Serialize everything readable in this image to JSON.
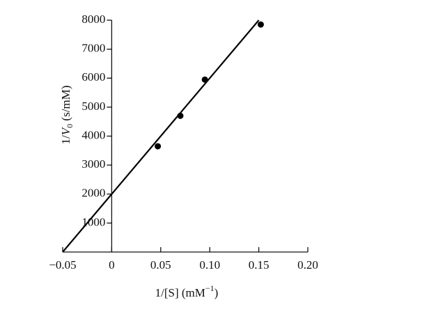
{
  "chart_data": {
    "type": "scatter",
    "x": [
      0.047,
      0.07,
      0.095,
      0.152
    ],
    "values": [
      3650,
      4700,
      5950,
      7850
    ],
    "color": "#000000",
    "line": {
      "x": [
        -0.05,
        0.15
      ],
      "y": [
        0,
        8000
      ]
    },
    "xlim": [
      -0.05,
      0.2
    ],
    "xticks": [
      {
        "value": -0.05,
        "label": "−0.05"
      },
      0,
      0.05,
      {
        "value": 0.1,
        "label": "0.10"
      },
      0.15,
      {
        "value": 0.2,
        "label": "0.20"
      }
    ],
    "ylim": [
      0,
      8000
    ],
    "yticks": [
      1000,
      2000,
      3000,
      4000,
      5000,
      6000,
      7000,
      8000
    ],
    "xlabel": {
      "text": "1/[S] (mM",
      "sup": "−1",
      "close": ")"
    },
    "ylabel": {
      "prefix": "1/",
      "var": "V",
      "sub": "0",
      "unit": " (s/mM)"
    }
  }
}
